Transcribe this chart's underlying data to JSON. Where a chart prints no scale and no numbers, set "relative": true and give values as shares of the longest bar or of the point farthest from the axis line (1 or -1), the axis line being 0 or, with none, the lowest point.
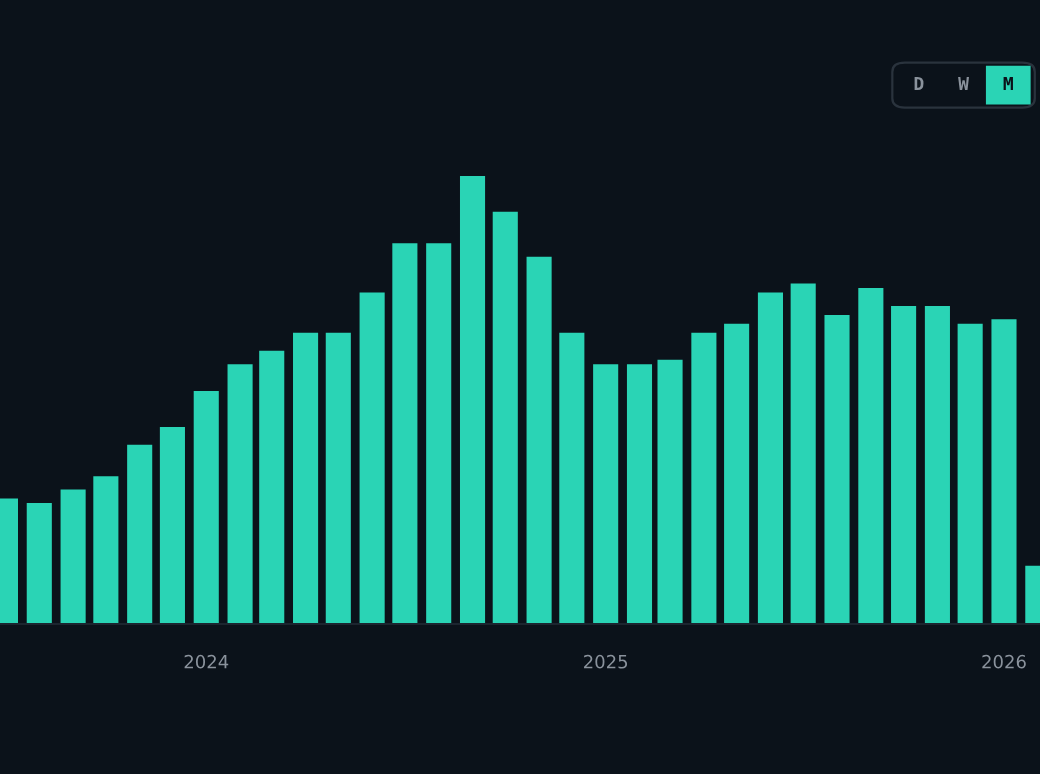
{
  "chart_data": {
    "type": "bar",
    "relative": true,
    "color": "#2ad4b5",
    "x": [
      "2023-07",
      "2023-08",
      "2023-09",
      "2023-10",
      "2023-11",
      "2023-12",
      "2024-01",
      "2024-02",
      "2024-03",
      "2024-04",
      "2024-05",
      "2024-06",
      "2024-07",
      "2024-08",
      "2024-09",
      "2024-10",
      "2024-11",
      "2024-12",
      "2025-01",
      "2025-02",
      "2025-03",
      "2025-04",
      "2025-05",
      "2025-06",
      "2025-07",
      "2025-08",
      "2025-09",
      "2025-10",
      "2025-11",
      "2025-12",
      "2026-01",
      "2026-02"
    ],
    "values": [
      0.28,
      0.27,
      0.3,
      0.33,
      0.4,
      0.44,
      0.52,
      0.58,
      0.61,
      0.65,
      0.65,
      0.74,
      0.85,
      0.85,
      1,
      0.92,
      0.82,
      0.65,
      0.58,
      0.58,
      0.59,
      0.65,
      0.67,
      0.74,
      0.76,
      0.69,
      0.75,
      0.71,
      0.71,
      0.67,
      0.68,
      0.13
    ],
    "xlim": [
      "2023-06-26",
      "2026-02-03"
    ],
    "xticks": [
      {
        "value": "2024-01",
        "label": "2024"
      },
      {
        "value": "2025-01",
        "label": "2025"
      },
      {
        "value": "2026-01",
        "label": "2026"
      }
    ],
    "grid": false,
    "legend": false,
    "annotations": [
      "D",
      "W",
      "M"
    ]
  }
}
